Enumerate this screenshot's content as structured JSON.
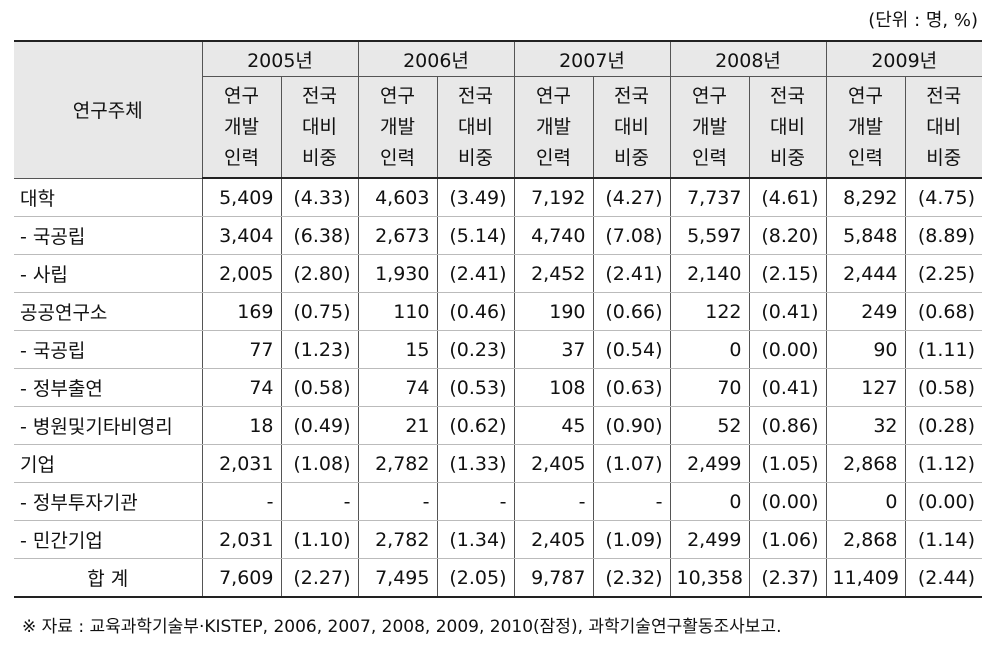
{
  "unit_note": "(단위 : 명, %)",
  "header": {
    "corner": "연구주체",
    "years": [
      "2005년",
      "2006년",
      "2007년",
      "2008년",
      "2009년"
    ],
    "sub_a": [
      "연구",
      "개발",
      "인력"
    ],
    "sub_b": [
      "전국",
      "대비",
      "비중"
    ]
  },
  "rows": [
    {
      "label": "대학",
      "cells": [
        "5,409",
        "(4.33)",
        "4,603",
        "(3.49)",
        "7,192",
        "(4.27)",
        "7,737",
        "(4.61)",
        "8,292",
        "(4.75)"
      ]
    },
    {
      "label": "- 국공립",
      "cells": [
        "3,404",
        "(6.38)",
        "2,673",
        "(5.14)",
        "4,740",
        "(7.08)",
        "5,597",
        "(8.20)",
        "5,848",
        "(8.89)"
      ]
    },
    {
      "label": "- 사립",
      "cells": [
        "2,005",
        "(2.80)",
        "1,930",
        "(2.41)",
        "2,452",
        "(2.41)",
        "2,140",
        "(2.15)",
        "2,444",
        "(2.25)"
      ]
    },
    {
      "label": "공공연구소",
      "cells": [
        "169",
        "(0.75)",
        "110",
        "(0.46)",
        "190",
        "(0.66)",
        "122",
        "(0.41)",
        "249",
        "(0.68)"
      ]
    },
    {
      "label": "- 국공립",
      "cells": [
        "77",
        "(1.23)",
        "15",
        "(0.23)",
        "37",
        "(0.54)",
        "0",
        "(0.00)",
        "90",
        "(1.11)"
      ]
    },
    {
      "label": "- 정부출연",
      "cells": [
        "74",
        "(0.58)",
        "74",
        "(0.53)",
        "108",
        "(0.63)",
        "70",
        "(0.41)",
        "127",
        "(0.58)"
      ]
    },
    {
      "label": "- 병원및기타비영리",
      "cells": [
        "18",
        "(0.49)",
        "21",
        "(0.62)",
        "45",
        "(0.90)",
        "52",
        "(0.86)",
        "32",
        "(0.28)"
      ]
    },
    {
      "label": "기업",
      "cells": [
        "2,031",
        "(1.08)",
        "2,782",
        "(1.33)",
        "2,405",
        "(1.07)",
        "2,499",
        "(1.05)",
        "2,868",
        "(1.12)"
      ]
    },
    {
      "label": "- 정부투자기관",
      "cells": [
        "-",
        "-",
        "-",
        "-",
        "-",
        "-",
        "0",
        "(0.00)",
        "0",
        "(0.00)"
      ]
    },
    {
      "label": "- 민간기업",
      "cells": [
        "2,031",
        "(1.10)",
        "2,782",
        "(1.34)",
        "2,405",
        "(1.09)",
        "2,499",
        "(1.06)",
        "2,868",
        "(1.14)"
      ]
    },
    {
      "label": "합 계",
      "cells": [
        "7,609",
        "(2.27)",
        "7,495",
        "(2.05)",
        "9,787",
        "(2.32)",
        "10,358",
        "(2.37)",
        "11,409",
        "(2.44)"
      ]
    }
  ],
  "source": "※ 자료 : 교육과학기술부·KISTEP, 2006, 2007, 2008, 2009, 2010(잠정), 과학기술연구활동조사보고."
}
